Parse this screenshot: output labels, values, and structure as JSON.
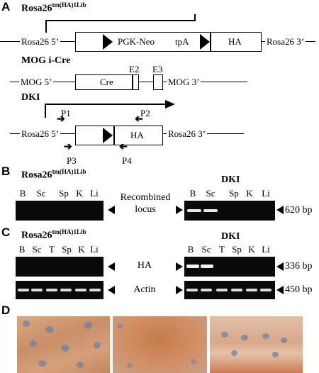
{
  "panels": {
    "a": "A",
    "b": "B",
    "c": "C",
    "d": "D"
  },
  "construct_a": {
    "title_main": "Rosa26",
    "title_sup": "tm(HA)1Lib",
    "left_flank": "Rosa26 5’",
    "right_flank": "Rosa26 3’",
    "pgk_neo": "PGK-Neo",
    "tpa": "tpA",
    "ha": "HA"
  },
  "construct_mog": {
    "title": "MOG i-Cre",
    "left_flank": "MOG 5’",
    "right_flank": "MOG 3’",
    "cre": "Cre",
    "e2": "E2",
    "e3": "E3"
  },
  "construct_dki": {
    "title": "DKI",
    "left_flank": "Rosa26 5’",
    "right_flank": "Rosa26 3’",
    "ha": "HA",
    "primers": [
      "P1",
      "P2",
      "P3",
      "P4"
    ]
  },
  "panel_b": {
    "left_title_main": "Rosa26",
    "left_title_sup": "tm(HA)1Lib",
    "right_title": "DKI",
    "left_lanes": [
      "B",
      "Sc",
      "Sp",
      "K",
      "Li"
    ],
    "right_lanes": [
      "B",
      "Sc",
      "Sp",
      "K",
      "Li"
    ],
    "center_label_1": "Recombined",
    "center_label_2": "locus",
    "size": "620 bp"
  },
  "panel_c": {
    "left_title_main": "Rosa26",
    "left_title_sup": "tm(HA)1Lib",
    "right_title": "DKI",
    "left_lanes": [
      "B",
      "Sc",
      "T",
      "Sp",
      "K",
      "Li"
    ],
    "right_lanes": [
      "B",
      "Sc",
      "T",
      "Sp",
      "K",
      "Li"
    ],
    "ha_label": "HA",
    "actin_label": "Actin",
    "ha_size": "336 bp",
    "actin_size": "450 bp"
  },
  "colors": {
    "tissue": "#c9906a",
    "nuclei": "#6f82a8",
    "gel": "#0a0a0a",
    "band": "#e8e8e8"
  }
}
